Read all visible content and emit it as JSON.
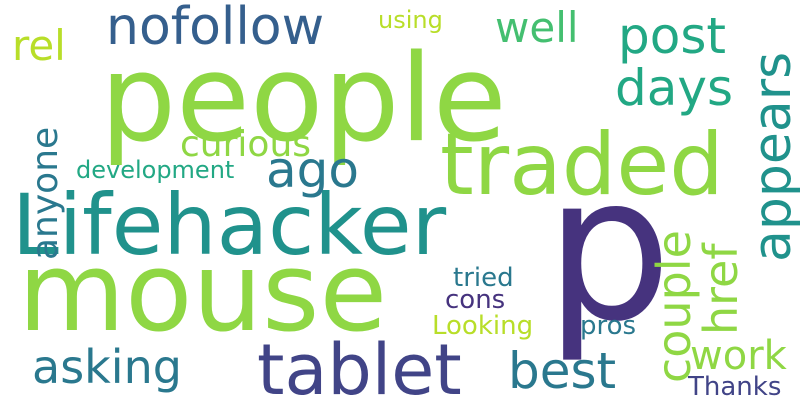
{
  "colors": {
    "background": "#ffffff",
    "light_green": "#8fd744",
    "lime": "#b8de29",
    "green": "#44bf70",
    "teal_green": "#22a884",
    "teal": "#20928c",
    "blue_teal": "#2a788e",
    "slate_blue": "#355f8d",
    "indigo": "#414487",
    "purple": "#46337e"
  },
  "words": {
    "people": "people",
    "p": "p",
    "mouse": "mouse",
    "lifehacker": "Lifehacker",
    "traded": "traded",
    "tablet": "tablet",
    "nofollow": "nofollow",
    "post": "post",
    "appears": "appears",
    "days": "days",
    "ago": "ago",
    "well": "well",
    "using": "using",
    "rel": "rel",
    "curious": "curious",
    "anyone": "anyone",
    "development": "development",
    "couple": "couple",
    "href": "href",
    "asking": "asking",
    "best": "best",
    "work": "work",
    "tried": "tried",
    "cons": "cons",
    "looking": "Looking",
    "pros": "pros",
    "thanks": "Thanks"
  }
}
